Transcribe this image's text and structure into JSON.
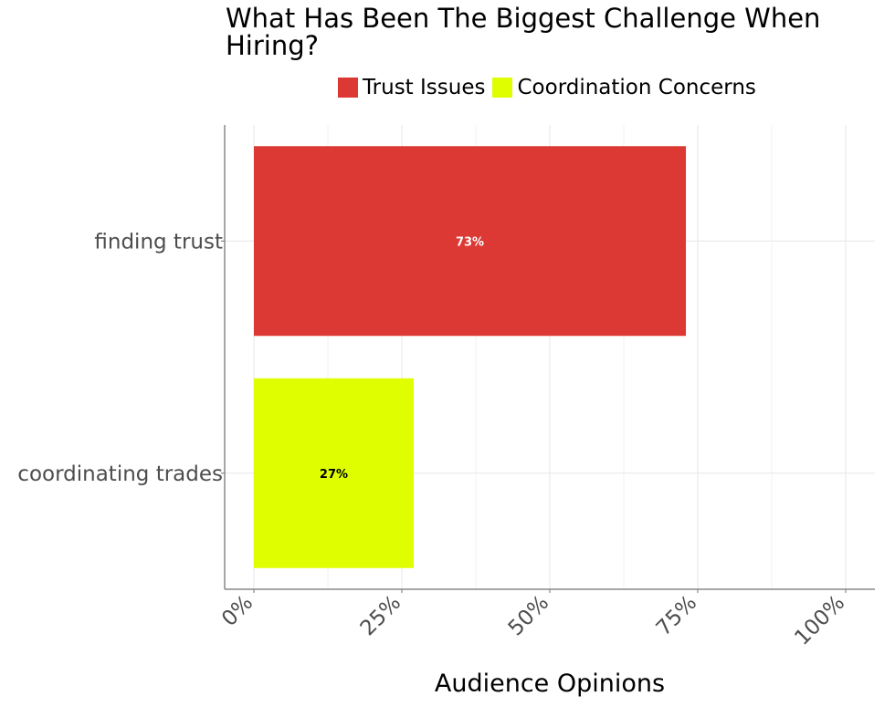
{
  "chart_data": {
    "type": "bar",
    "orientation": "horizontal",
    "title": "What Has Been The Biggest Challenge When Hiring?",
    "xlabel": "Audience Opinions",
    "ylabel": "",
    "xlim": [
      0,
      100
    ],
    "x_ticks": [
      0,
      25,
      50,
      75,
      100
    ],
    "x_tick_labels": [
      "0%",
      "25%",
      "50%",
      "75%",
      "100%"
    ],
    "categories": [
      "finding trust",
      "coordinating trades"
    ],
    "values": [
      73,
      27
    ],
    "data_labels": [
      "73%",
      "27%"
    ],
    "series": [
      {
        "name": "Trust Issues",
        "color": "#dc3935",
        "label_color": "#ffffff"
      },
      {
        "name": "Coordination Concerns",
        "color": "#dfff00",
        "label_color": "#000000"
      }
    ],
    "legend_position": "top",
    "grid": true
  }
}
